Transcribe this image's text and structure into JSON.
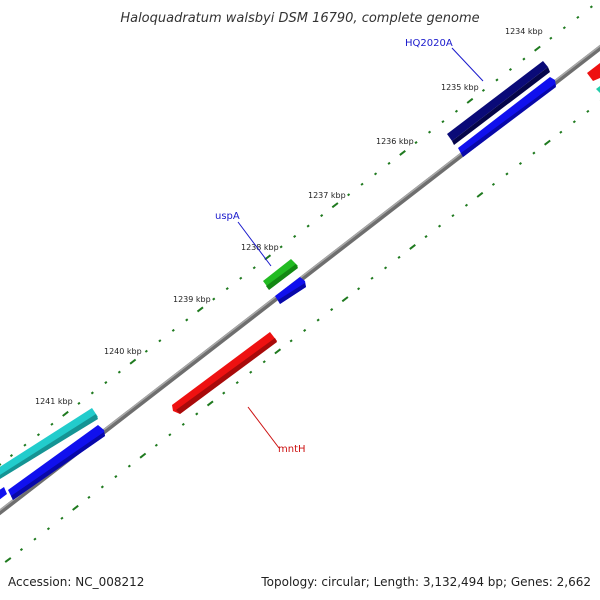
{
  "title": "Haloquadratum walsbyi DSM 16790, complete genome",
  "footer": {
    "accession": "Accession: NC_008212",
    "summary": "Topology: circular; Length: 3,132,494 bp; Genes: 2,662"
  },
  "kbp_labels": [
    "1234 kbp",
    "1235 kbp",
    "1236 kbp",
    "1237 kbp",
    "1238 kbp",
    "1239 kbp",
    "1240 kbp",
    "1241 kbp"
  ],
  "gene_labels": {
    "hq2020a": "HQ2020A",
    "uspa": "uspA",
    "mnth": "mntH"
  },
  "colors": {
    "backbone": "#808080",
    "tick": "#1f7a1f",
    "navy_gene": "#0a0a78",
    "blue_cds": "#1010ee",
    "green_gene": "#22bb22",
    "red_gene": "#ee1111",
    "cyan_gene": "#22cccc",
    "teal_gene": "#22ccaa",
    "label_blue": "#1a1acc",
    "label_red": "#cc1111"
  }
}
